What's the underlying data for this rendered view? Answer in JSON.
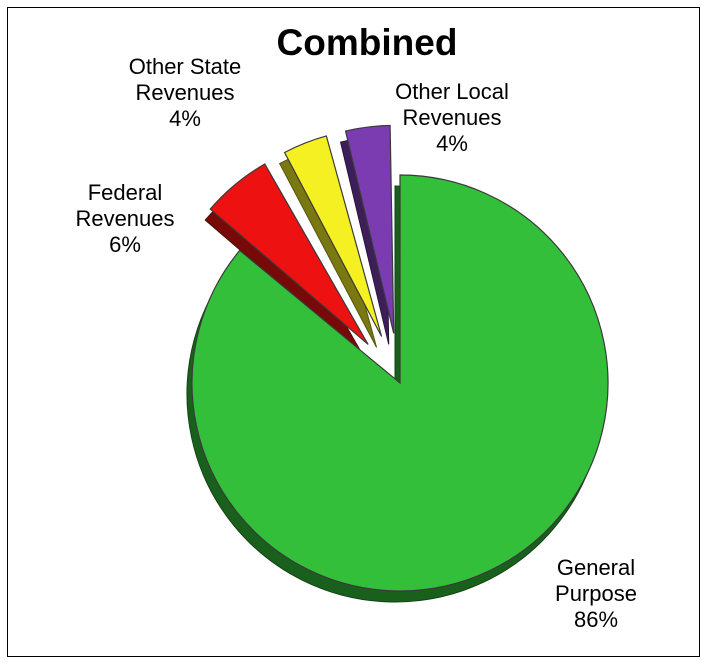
{
  "chart_data": {
    "type": "pie",
    "title": "Combined",
    "exploded": true,
    "three_d": true,
    "slices": [
      {
        "name": "General Purpose",
        "label_lines": [
          "General",
          "Purpose",
          "86%"
        ],
        "value": 86,
        "color": "#33bf3a",
        "exploded": false
      },
      {
        "name": "Federal Revenues",
        "label_lines": [
          "Federal",
          "Revenues",
          "6%"
        ],
        "value": 6,
        "color": "#ee1111",
        "exploded": true
      },
      {
        "name": "Other State Revenues",
        "label_lines": [
          "Other State",
          "Revenues",
          "4%"
        ],
        "value": 4,
        "color": "#f4f021",
        "exploded": true
      },
      {
        "name": "Other Local Revenues",
        "label_lines": [
          "Other Local",
          "Revenues",
          "4%"
        ],
        "value": 4,
        "color": "#7a3cb0",
        "exploded": true
      }
    ],
    "legend": "none"
  }
}
